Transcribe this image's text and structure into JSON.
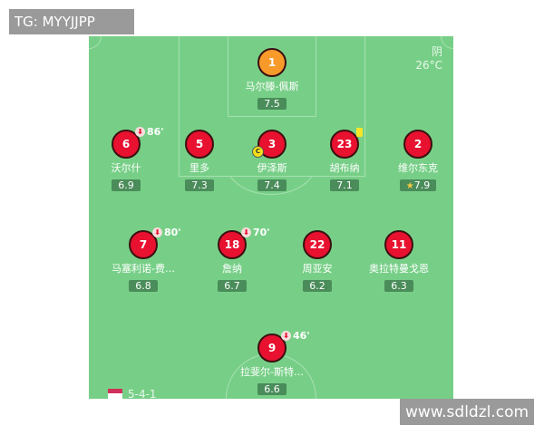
{
  "watermarks": {
    "top_left": "TG: MYYJJPP",
    "bottom_right": "www.sdldzl.com"
  },
  "weather": {
    "condition": "阴",
    "temperature": "26°C"
  },
  "formation": "5-4-1",
  "colors": {
    "pitch": "#77cf87",
    "player": "#e8112f",
    "goalkeeper": "#f79a2a",
    "rating_bg": "#4a8c5a"
  },
  "players": [
    {
      "number": "1",
      "name": "马尔滕-佩斯",
      "rating": "7.5",
      "gk": true
    },
    {
      "number": "6",
      "name": "沃尔什",
      "rating": "6.9",
      "sub": "86'"
    },
    {
      "number": "5",
      "name": "里多",
      "rating": "7.3"
    },
    {
      "number": "3",
      "name": "伊泽斯",
      "rating": "7.4",
      "captain": "C"
    },
    {
      "number": "23",
      "name": "胡布纳",
      "rating": "7.1",
      "yellow_card": true
    },
    {
      "number": "2",
      "name": "维尔东克",
      "rating": "7.9",
      "star": true
    },
    {
      "number": "7",
      "name": "马塞利诺-费…",
      "rating": "6.8",
      "sub": "80'"
    },
    {
      "number": "18",
      "name": "詹纳",
      "rating": "6.7",
      "sub": "70'"
    },
    {
      "number": "22",
      "name": "周亚安",
      "rating": "6.2"
    },
    {
      "number": "11",
      "name": "奥拉特曼戈恩",
      "rating": "6.3"
    },
    {
      "number": "9",
      "name": "拉斐尔-斯特…",
      "rating": "6.6",
      "sub": "46'"
    }
  ]
}
